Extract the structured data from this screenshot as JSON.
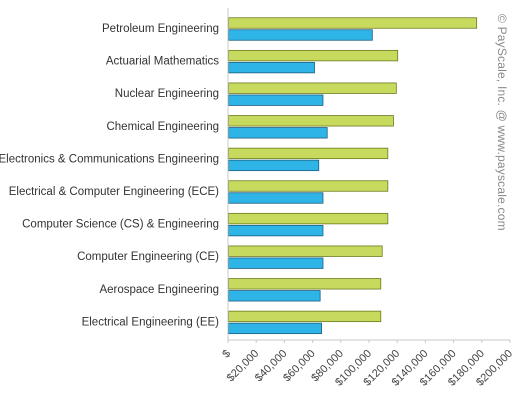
{
  "credit": "© PayScale, Inc. @ www.payscale.com",
  "colors": {
    "series_mid_career": "#c8da5e",
    "series_mid_career_stroke": "#6b7a1e",
    "series_starting": "#2eb4e6",
    "series_starting_stroke": "#1b5f80",
    "axis": "#c8c8c8"
  },
  "chart_data": {
    "type": "bar",
    "orientation": "horizontal",
    "title": "",
    "xlabel": "",
    "ylabel": "",
    "xlim": [
      0,
      200000
    ],
    "grid": false,
    "legend": "none",
    "categories": [
      "Petroleum Engineering",
      "Actuarial Mathematics",
      "Nuclear Engineering",
      "Chemical Engineering",
      "Electronics & Communications Engineering",
      "Electrical & Computer Engineering (ECE)",
      "Computer Science (CS) & Engineering",
      "Computer Engineering (CE)",
      "Aerospace Engineering",
      "Electrical Engineering (EE)"
    ],
    "x_ticks": [
      "$",
      "$20,000",
      "$40,000",
      "$60,000",
      "$80,000",
      "$100,000",
      "$120,000",
      "$140,000",
      "$160,000",
      "$180,000",
      "$200,000"
    ],
    "x_tick_values": [
      0,
      20000,
      40000,
      60000,
      80000,
      100000,
      120000,
      140000,
      160000,
      180000,
      200000
    ],
    "series": [
      {
        "values": [
          176000,
          120000,
          119000,
          117000,
          113000,
          113000,
          113000,
          109000,
          108000,
          108000
        ]
      },
      {
        "values": [
          102000,
          61000,
          67000,
          70000,
          64000,
          67000,
          67000,
          67000,
          65000,
          66000
        ]
      }
    ]
  }
}
